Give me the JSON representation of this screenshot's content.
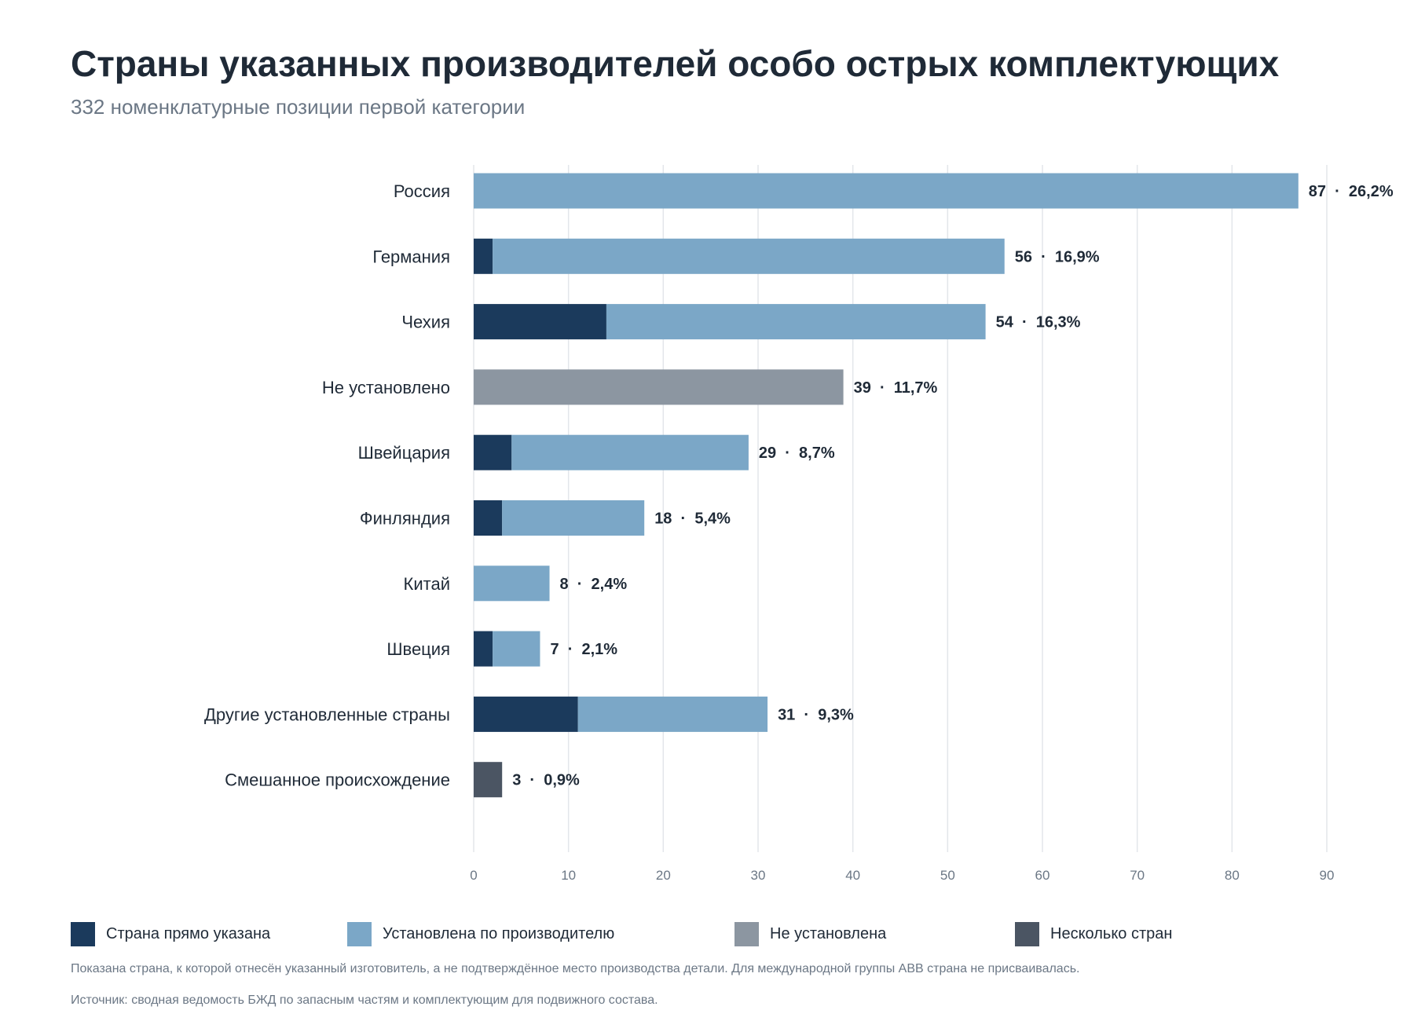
{
  "title": "Страны указанных производителей особо острых комплектующих",
  "subtitle": "332 номенклатурные позиции первой категории",
  "colors": {
    "direct": "#1b3a5c",
    "by_manufacturer": "#7ba7c7",
    "not_set": "#8c96a1",
    "several": "#4b5563",
    "grid": "#e3e6ea",
    "text": "#1f2a37",
    "muted": "#6b7785"
  },
  "legend": {
    "items": [
      {
        "label": "Страна прямо указана",
        "color": "#1b3a5c"
      },
      {
        "label": "Установлена по производителю",
        "color": "#7ba7c7"
      },
      {
        "label": "Не установлена",
        "color": "#8c96a1"
      },
      {
        "label": "Несколько стран",
        "color": "#4b5563"
      }
    ]
  },
  "note": "Показана страна, к которой отнесён указанный изготовитель, а не подтверждённое место производства детали. Для международной группы ABB страна не присваивалась.",
  "source": "Источник: сводная ведомость БЖД по запасным частям и комплектующим для подвижного состава.",
  "chart_data": {
    "type": "bar",
    "orientation": "horizontal",
    "stacked": true,
    "title": "Страны указанных производителей особо острых комплектующих",
    "subtitle": "332 номенклатурные позиции первой категории",
    "xlim": [
      0,
      90
    ],
    "x_ticks": [
      0,
      10,
      20,
      30,
      40,
      50,
      60,
      70,
      80,
      90
    ],
    "grid": true,
    "legend_position": "bottom",
    "categories": [
      "Россия",
      "Германия",
      "Чехия",
      "Не установлено",
      "Швейцария",
      "Финляндия",
      "Китай",
      "Швеция",
      "Другие установленные страны",
      "Смешанное происхождение"
    ],
    "series": [
      {
        "name": "Страна прямо указана",
        "values": [
          0,
          2,
          14,
          0,
          4,
          3,
          0,
          2,
          11,
          0
        ]
      },
      {
        "name": "Установлена по производителю",
        "values": [
          87,
          54,
          40,
          0,
          25,
          15,
          8,
          5,
          20,
          0
        ]
      },
      {
        "name": "Не установлена",
        "values": [
          0,
          0,
          0,
          39,
          0,
          0,
          0,
          0,
          0,
          0
        ]
      },
      {
        "name": "Несколько стран",
        "values": [
          0,
          0,
          0,
          0,
          0,
          0,
          0,
          0,
          0,
          3
        ]
      }
    ],
    "totals": [
      87,
      56,
      54,
      39,
      29,
      18,
      8,
      7,
      31,
      3
    ],
    "data_labels": [
      "87  ·  26,2%",
      "56  ·  16,9%",
      "54  ·  16,3%",
      "39  ·  11,7%",
      "29  ·  8,7%",
      "18  ·  5,4%",
      "8  ·  2,4%",
      "7  ·  2,1%",
      "31  ·  9,3%",
      "3  ·  0,9%"
    ]
  }
}
